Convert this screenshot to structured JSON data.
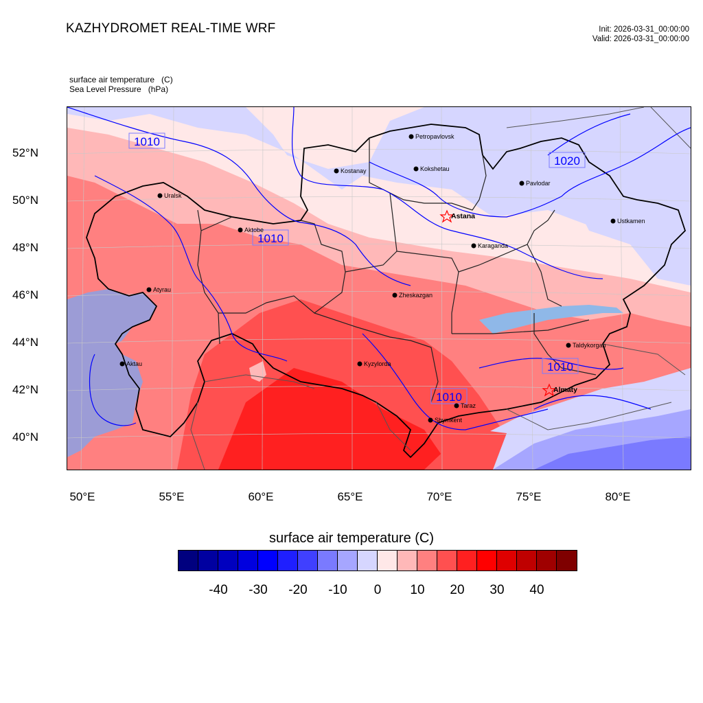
{
  "header": {
    "title": "KAZHYDROMET REAL-TIME WRF",
    "init": "Init: 2026-03-31_00:00:00",
    "valid": "Valid: 2026-03-31_00:00:00"
  },
  "fields": {
    "line1": "surface air temperature   (C)",
    "line2": "Sea Level Pressure   (hPa)"
  },
  "map": {
    "lat_labels": [
      "52°N",
      "50°N",
      "48°N",
      "46°N",
      "44°N",
      "42°N",
      "40°N"
    ],
    "lon_labels": [
      "50°E",
      "55°E",
      "60°E",
      "65°E",
      "70°E",
      "75°E",
      "80°E"
    ],
    "cities": [
      {
        "name": "Petropavlovsk"
      },
      {
        "name": "Kostanay"
      },
      {
        "name": "Kokshetau"
      },
      {
        "name": "Pavlodar"
      },
      {
        "name": "Uralsk"
      },
      {
        "name": "Astana"
      },
      {
        "name": "Ustkamen"
      },
      {
        "name": "Aktobe"
      },
      {
        "name": "Karaganda"
      },
      {
        "name": "Atyrau"
      },
      {
        "name": "Zheskazgan"
      },
      {
        "name": "Taldykorgan"
      },
      {
        "name": "Aktau"
      },
      {
        "name": "Kyzylorda"
      },
      {
        "name": "Almaty"
      },
      {
        "name": "Taraz"
      },
      {
        "name": "Shymkent"
      }
    ],
    "pressure_labels": [
      "1010",
      "1020",
      "1010",
      "1010",
      "1010"
    ]
  },
  "colorbar": {
    "title": "surface air temperature  (C)",
    "ticks": [
      "-40",
      "-30",
      "-20",
      "-10",
      "0",
      "10",
      "20",
      "30",
      "40"
    ],
    "colors": [
      "#00007f",
      "#0000a0",
      "#0000bf",
      "#0000df",
      "#0000ff",
      "#1f1fff",
      "#4040ff",
      "#7a7aff",
      "#a6a6ff",
      "#d6d6ff",
      "#ffe8e8",
      "#ffb8b8",
      "#ff8080",
      "#ff5050",
      "#ff2020",
      "#ff0000",
      "#df0000",
      "#bf0000",
      "#9f0000",
      "#7f0000"
    ]
  }
}
